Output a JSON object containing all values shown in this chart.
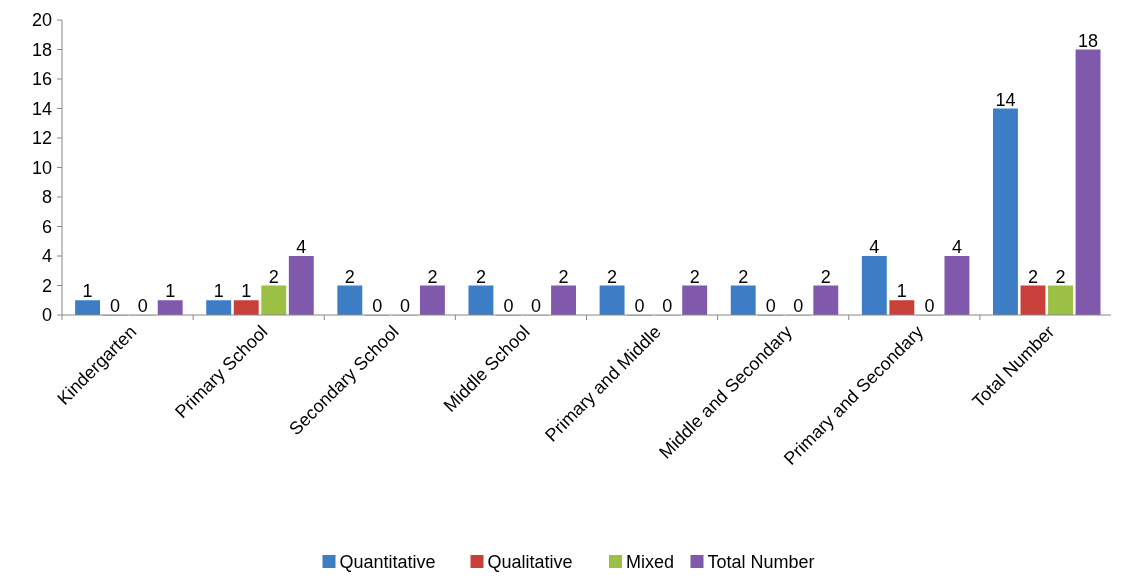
{
  "chart_data": {
    "type": "bar",
    "categories": [
      "Kindergarten",
      "Primary School",
      "Secondary School",
      "Middle School",
      "Primary and Middle",
      "Middle and Secondary",
      "Primary and Secondary",
      "Total Number"
    ],
    "series": [
      {
        "name": "Quantitative",
        "color": "#3d7dc6",
        "values": [
          1,
          1,
          2,
          2,
          2,
          2,
          4,
          14
        ]
      },
      {
        "name": "Qualitative",
        "color": "#c9403b",
        "values": [
          0,
          1,
          0,
          0,
          0,
          0,
          1,
          2
        ]
      },
      {
        "name": "Mixed",
        "color": "#9cc045",
        "values": [
          0,
          2,
          0,
          0,
          0,
          0,
          0,
          2
        ]
      },
      {
        "name": "Total Number",
        "color": "#8059ad",
        "values": [
          1,
          4,
          2,
          2,
          2,
          2,
          4,
          18
        ]
      }
    ],
    "ylim": [
      0,
      20
    ],
    "yticks": [
      0,
      2,
      4,
      6,
      8,
      10,
      12,
      14,
      16,
      18,
      20
    ],
    "data_labels": true,
    "legend": "bottom",
    "grid": false
  }
}
